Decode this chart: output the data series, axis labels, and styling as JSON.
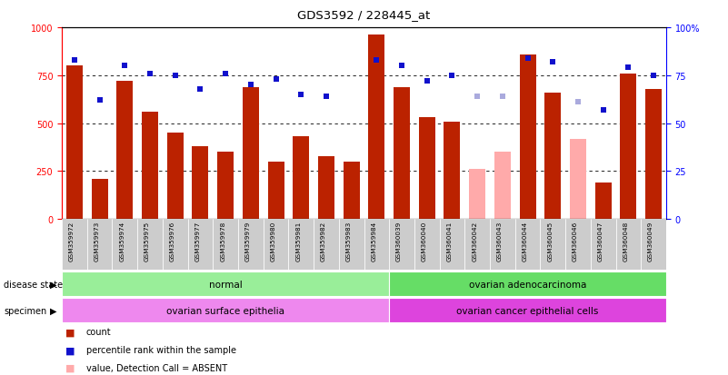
{
  "title": "GDS3592 / 228445_at",
  "samples": [
    "GSM359972",
    "GSM359973",
    "GSM359974",
    "GSM359975",
    "GSM359976",
    "GSM359977",
    "GSM359978",
    "GSM359979",
    "GSM359980",
    "GSM359981",
    "GSM359982",
    "GSM359983",
    "GSM359984",
    "GSM360039",
    "GSM360040",
    "GSM360041",
    "GSM360042",
    "GSM360043",
    "GSM360044",
    "GSM360045",
    "GSM360046",
    "GSM360047",
    "GSM360048",
    "GSM360049"
  ],
  "count_values": [
    800,
    210,
    720,
    560,
    450,
    380,
    350,
    690,
    300,
    430,
    330,
    300,
    960,
    690,
    530,
    510,
    0,
    0,
    860,
    660,
    0,
    190,
    760,
    680
  ],
  "absent_count_values": [
    0,
    0,
    0,
    0,
    0,
    0,
    0,
    0,
    0,
    0,
    0,
    0,
    0,
    0,
    0,
    0,
    260,
    350,
    0,
    0,
    420,
    0,
    0,
    0
  ],
  "rank_values": [
    83,
    62,
    80,
    76,
    75,
    68,
    76,
    70,
    73,
    65,
    64,
    null,
    83,
    80,
    72,
    75,
    null,
    null,
    84,
    82,
    null,
    57,
    79,
    75
  ],
  "absent_rank_values": [
    null,
    null,
    null,
    null,
    null,
    null,
    null,
    null,
    null,
    null,
    null,
    null,
    null,
    null,
    null,
    null,
    64,
    64,
    null,
    null,
    61,
    null,
    null,
    null
  ],
  "disease_groups": [
    {
      "label": "normal",
      "start": 0,
      "end": 12,
      "color": "#99ee99"
    },
    {
      "label": "ovarian adenocarcinoma",
      "start": 13,
      "end": 23,
      "color": "#66dd66"
    }
  ],
  "specimen_groups": [
    {
      "label": "ovarian surface epithelia",
      "start": 0,
      "end": 12,
      "color": "#ee88ee"
    },
    {
      "label": "ovarian cancer epithelial cells",
      "start": 13,
      "end": 23,
      "color": "#dd44dd"
    }
  ],
  "bar_color_normal": "#bb2200",
  "bar_color_absent": "#ffaaaa",
  "rank_color_normal": "#1111cc",
  "rank_color_absent": "#aaaadd",
  "ylim_left": [
    0,
    1000
  ],
  "yticks_left": [
    0,
    250,
    500,
    750,
    1000
  ],
  "yticks_right": [
    0,
    25,
    50,
    75,
    100
  ],
  "background_color": "#ffffff",
  "gridline_color": "#000000",
  "gridline_values": [
    250,
    500,
    750
  ]
}
